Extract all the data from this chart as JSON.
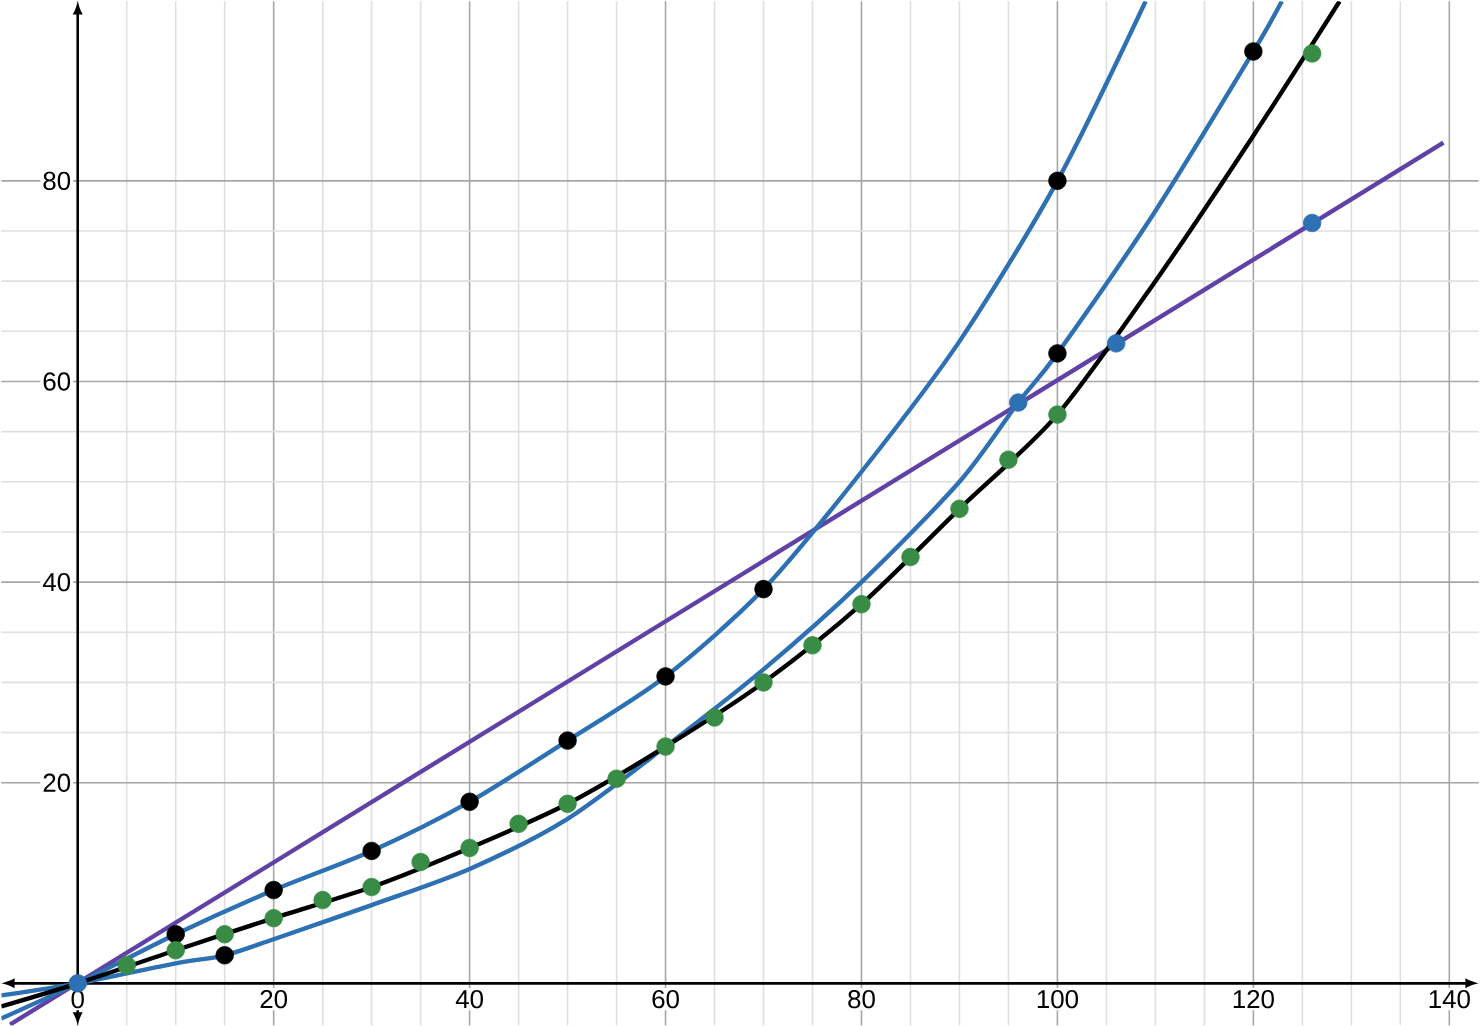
{
  "chart_data": {
    "type": "line",
    "xlim": [
      -7.8,
      143
    ],
    "ylim": [
      -4.2,
      97.9
    ],
    "xticks": [
      0,
      20,
      40,
      60,
      80,
      100,
      120,
      140
    ],
    "yticks": [
      20,
      40,
      60,
      80
    ],
    "grid": true,
    "line_style": "solid",
    "series": [
      {
        "marker": "none",
        "color": "#6042a6",
        "x": [
          -6.9,
          139.4
        ],
        "values": [
          -4.1,
          83.8
        ]
      },
      {
        "marker": "none",
        "color": "#2d70b3",
        "x": [
          -7.8,
          0,
          10,
          20,
          30,
          40,
          50,
          60,
          70,
          80,
          90,
          100,
          109
        ],
        "values": [
          -3.5,
          0,
          4.9,
          9.3,
          13.2,
          18.1,
          24.2,
          30.6,
          39.3,
          51,
          64,
          80,
          97.9
        ]
      },
      {
        "marker": "none",
        "color": "#2d70b3",
        "x": [
          -7.8,
          0,
          10,
          15,
          20,
          30,
          40,
          50,
          60,
          70,
          80,
          90,
          96,
          100,
          110,
          120,
          122.9
        ],
        "values": [
          -1.2,
          0,
          2,
          2.8,
          4.4,
          7.8,
          11.4,
          16.4,
          23.6,
          31.3,
          40,
          50,
          57.9,
          62.8,
          77,
          92.9,
          97.9
        ]
      },
      {
        "marker": "none",
        "color": "#000000",
        "x": [
          -7.8,
          0,
          10,
          20,
          30,
          40,
          50,
          60,
          70,
          80,
          90,
          100,
          110,
          120,
          128.8
        ],
        "values": [
          -2.3,
          0,
          3.3,
          6.5,
          9.6,
          13.5,
          17.9,
          23.6,
          30,
          37.8,
          47.3,
          56.7,
          70,
          84.5,
          97.9
        ]
      },
      {
        "type": "scatter",
        "marker": "circle",
        "color": "#000000",
        "x": [
          10,
          15,
          20,
          30,
          40,
          50,
          60,
          70,
          100,
          100,
          120
        ],
        "values": [
          4.9,
          2.8,
          9.3,
          13.2,
          18.1,
          24.2,
          30.6,
          39.3,
          80,
          62.8,
          92.9
        ]
      },
      {
        "type": "scatter",
        "marker": "circle",
        "color": "#388c46",
        "x": [
          5,
          10,
          15,
          20,
          25,
          30,
          35,
          40,
          45,
          50,
          55,
          60,
          65,
          70,
          75,
          80,
          85,
          90,
          95,
          100,
          126
        ],
        "values": [
          1.8,
          3.3,
          4.9,
          6.5,
          8.3,
          9.6,
          12.1,
          13.5,
          15.9,
          17.9,
          20.4,
          23.6,
          26.5,
          30,
          33.7,
          37.8,
          42.5,
          47.3,
          52.2,
          56.7,
          92.7
        ]
      },
      {
        "type": "scatter",
        "marker": "circle",
        "color": "#2d70b3",
        "x": [
          0,
          96,
          106,
          126
        ],
        "values": [
          0,
          57.9,
          63.8,
          75.8
        ]
      }
    ]
  }
}
